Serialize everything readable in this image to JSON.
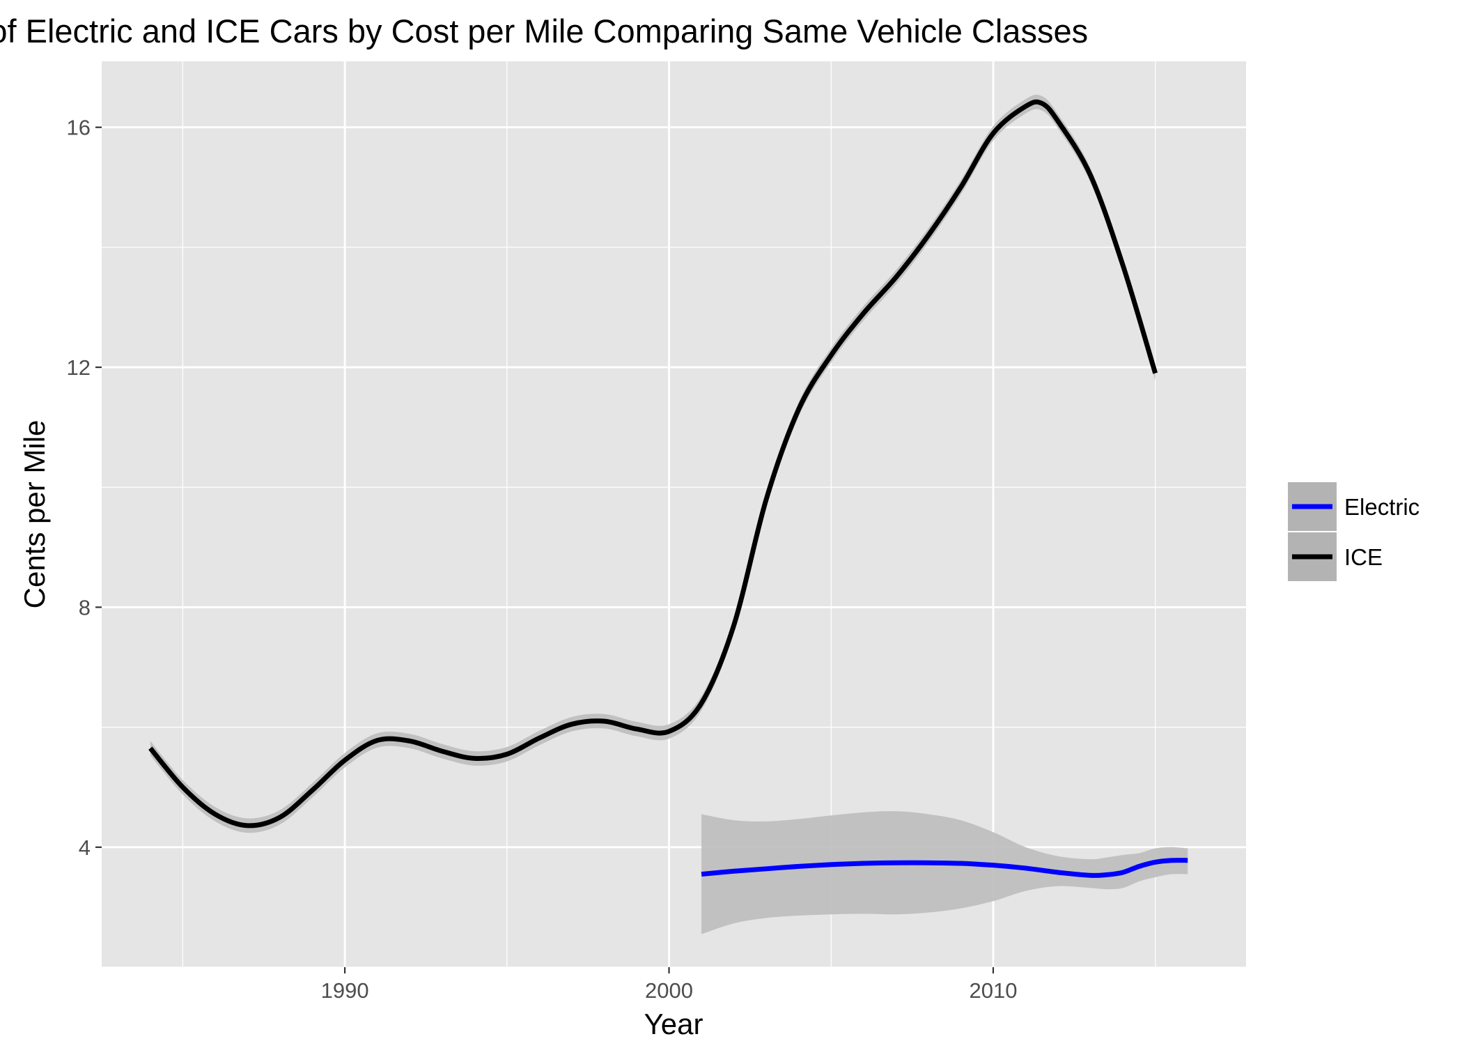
{
  "chart_data": {
    "type": "line",
    "title": "Comparison of Electric and ICE Cars by Cost per Mile Comparing Same Vehicle Classes",
    "xlabel": "Year",
    "ylabel": "Cents per Mile",
    "xlim": [
      1982.5,
      2017.8
    ],
    "ylim": [
      2.0,
      17.1
    ],
    "x_ticks": [
      1990,
      2000,
      2010
    ],
    "x_tick_labels": [
      "1990",
      "2000",
      "2010"
    ],
    "x_minor_ticks": [
      1985,
      1995,
      2005,
      2015
    ],
    "y_ticks": [
      4,
      8,
      12,
      16
    ],
    "y_tick_labels": [
      "4",
      "8",
      "12",
      "16"
    ],
    "y_minor_ticks": [
      2,
      6,
      10,
      14
    ],
    "grid": true,
    "legend_position": "right",
    "colors": {
      "panel_background": "#e5e5e5",
      "grid": "#ffffff",
      "confidence_band": "#bdbdbd",
      "legend_key_background": "#b3b3b3"
    },
    "series": [
      {
        "name": "Electric",
        "color": "#0000ff",
        "x": [
          2001,
          2002,
          2003,
          2004,
          2005,
          2006,
          2007,
          2008,
          2009,
          2010,
          2011,
          2012,
          2013,
          2013.5,
          2014,
          2014.5,
          2015,
          2015.5,
          2016
        ],
        "y": [
          3.55,
          3.6,
          3.64,
          3.68,
          3.71,
          3.73,
          3.74,
          3.74,
          3.73,
          3.7,
          3.65,
          3.58,
          3.53,
          3.54,
          3.58,
          3.68,
          3.75,
          3.78,
          3.78
        ],
        "band_upper": [
          4.55,
          4.45,
          4.43,
          4.47,
          4.53,
          4.58,
          4.6,
          4.55,
          4.45,
          4.25,
          4.0,
          3.85,
          3.8,
          3.83,
          3.87,
          3.9,
          3.98,
          4.0,
          3.98
        ],
        "band_lower": [
          2.55,
          2.73,
          2.82,
          2.86,
          2.88,
          2.89,
          2.88,
          2.91,
          2.98,
          3.1,
          3.27,
          3.35,
          3.32,
          3.3,
          3.32,
          3.43,
          3.5,
          3.55,
          3.55
        ]
      },
      {
        "name": "ICE",
        "color": "#000000",
        "x": [
          1984,
          1985,
          1986,
          1987,
          1988,
          1989,
          1990,
          1991,
          1992,
          1993,
          1994,
          1995,
          1996,
          1997,
          1998,
          1999,
          2000,
          2001,
          2002,
          2003,
          2004,
          2005,
          2006,
          2007,
          2008,
          2009,
          2010,
          2011,
          2011.5,
          2012,
          2013,
          2014,
          2015
        ],
        "y": [
          5.65,
          5.0,
          4.55,
          4.36,
          4.5,
          4.95,
          5.45,
          5.78,
          5.77,
          5.6,
          5.48,
          5.55,
          5.82,
          6.05,
          6.1,
          5.97,
          5.93,
          6.4,
          7.7,
          9.8,
          11.3,
          12.2,
          12.9,
          13.5,
          14.2,
          15.0,
          15.9,
          16.35,
          16.4,
          16.1,
          15.2,
          13.7,
          11.9
        ],
        "band_half_width": 0.12
      }
    ]
  }
}
